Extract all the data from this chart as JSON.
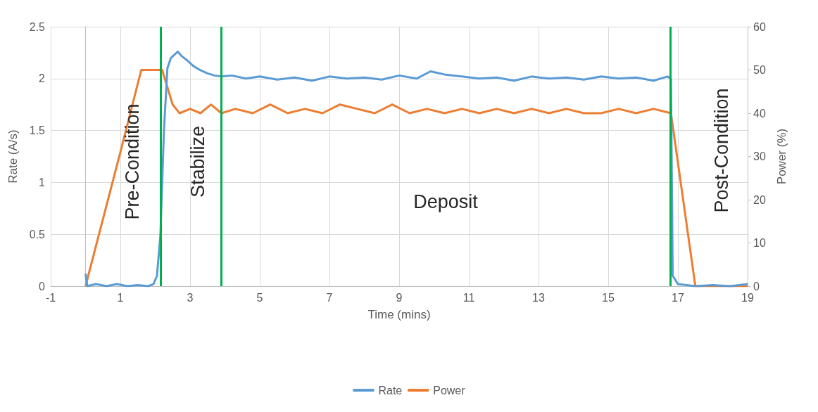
{
  "chart_data": {
    "type": "line",
    "xlabel": "Time (mins)",
    "ylabel": "Rate (A/s)",
    "y2label": "Power (%)",
    "xlim": [
      -1,
      19
    ],
    "xticks": [
      -1,
      1,
      3,
      5,
      7,
      9,
      11,
      13,
      15,
      17,
      19
    ],
    "ylim": [
      0,
      2.5
    ],
    "yticks": [
      0,
      0.5,
      1,
      1.5,
      2,
      2.5
    ],
    "y2lim": [
      0,
      60
    ],
    "y2ticks": [
      0,
      10,
      20,
      30,
      40,
      50,
      60
    ],
    "grid": true,
    "legend": "bottom",
    "marker": "none",
    "line_style": "solid",
    "series": [
      {
        "name": "Rate",
        "color": "#5b9bd5",
        "x": [
          0,
          0.05,
          0.3,
          0.6,
          0.9,
          1.2,
          1.5,
          1.8,
          1.95,
          2.05,
          2.15,
          2.25,
          2.35,
          2.45,
          2.55,
          2.65,
          2.75,
          2.9,
          3.1,
          3.3,
          3.5,
          3.7,
          3.9,
          4.2,
          4.6,
          5,
          5.5,
          6,
          6.5,
          7,
          7.5,
          8,
          8.5,
          9,
          9.5,
          9.9,
          10.3,
          10.8,
          11.3,
          11.8,
          12.3,
          12.8,
          13.3,
          13.8,
          14.3,
          14.8,
          15.3,
          15.8,
          16.3,
          16.7,
          16.8,
          16.85,
          17,
          17.5,
          18,
          18.5,
          19
        ],
        "values": [
          0.12,
          0,
          0.02,
          0,
          0.02,
          0,
          0.01,
          0,
          0.02,
          0.1,
          0.5,
          1.5,
          2.1,
          2.2,
          2.23,
          2.26,
          2.22,
          2.18,
          2.12,
          2.08,
          2.05,
          2.03,
          2.02,
          2.03,
          2.0,
          2.02,
          1.99,
          2.01,
          1.98,
          2.02,
          2.0,
          2.01,
          1.99,
          2.03,
          2.0,
          2.07,
          2.04,
          2.02,
          2.0,
          2.01,
          1.98,
          2.02,
          2.0,
          2.01,
          1.99,
          2.02,
          2.0,
          2.01,
          1.98,
          2.02,
          2.0,
          0.1,
          0.02,
          0,
          0.01,
          0,
          0.02
        ]
      },
      {
        "name": "Power",
        "color": "#ed7d31",
        "axis": "y2",
        "x": [
          0,
          0.5,
          1.0,
          1.6,
          2.2,
          2.5,
          2.7,
          3,
          3.3,
          3.6,
          3.9,
          4.3,
          4.8,
          5.3,
          5.8,
          6.3,
          6.8,
          7.3,
          7.8,
          8.3,
          8.8,
          9.3,
          9.8,
          10.3,
          10.8,
          11.3,
          11.8,
          12.3,
          12.8,
          13.3,
          13.8,
          14.3,
          14.8,
          15.3,
          15.8,
          16.3,
          16.8,
          17.5,
          18,
          18.5,
          19
        ],
        "values": [
          0,
          15.5,
          31,
          50,
          50,
          42,
          40,
          41,
          40,
          42,
          40,
          41,
          40,
          42,
          40,
          41,
          40,
          42,
          41,
          40,
          42,
          40,
          41,
          40,
          41,
          40,
          41,
          40,
          41,
          40,
          41,
          40,
          40,
          41,
          40,
          41,
          40,
          0,
          0,
          0,
          0
        ]
      }
    ],
    "ref_lines": [
      {
        "axis": "x",
        "value": 2.15,
        "color": "#00b050"
      },
      {
        "axis": "x",
        "value": 3.9,
        "color": "#00b050"
      },
      {
        "axis": "x",
        "value": 16.78,
        "color": "#00b050"
      }
    ],
    "annotations": [
      "Pre-Condition",
      "Stabilize",
      "Deposit",
      "Post-Condition"
    ]
  }
}
